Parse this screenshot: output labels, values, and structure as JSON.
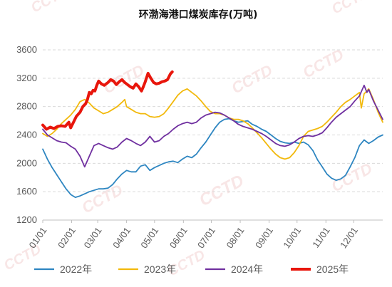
{
  "watermark": "CCTD",
  "chart_data": {
    "type": "line",
    "title": "环渤海港口煤炭库存(万吨)",
    "xlabel": "",
    "ylabel": "",
    "ylim": [
      1200,
      3600
    ],
    "yticks": [
      1200,
      1600,
      2000,
      2400,
      2800,
      3200,
      3600
    ],
    "xlim": [
      0,
      365
    ],
    "xticks": [
      {
        "label": "01/01",
        "day": 0
      },
      {
        "label": "02/01",
        "day": 31
      },
      {
        "label": "03/01",
        "day": 59
      },
      {
        "label": "04/01",
        "day": 90
      },
      {
        "label": "05/01",
        "day": 120
      },
      {
        "label": "06/01",
        "day": 151
      },
      {
        "label": "07/01",
        "day": 181
      },
      {
        "label": "08/01",
        "day": 212
      },
      {
        "label": "09/01",
        "day": 243
      },
      {
        "label": "10/01",
        "day": 273
      },
      {
        "label": "11/01",
        "day": 304
      },
      {
        "label": "12/01",
        "day": 334
      }
    ],
    "grid": true,
    "legend": "bottom",
    "series": [
      {
        "name": "2022年",
        "color": "#2e86c1",
        "width": 1.8,
        "points": [
          [
            0,
            2200
          ],
          [
            5,
            2060
          ],
          [
            10,
            1940
          ],
          [
            15,
            1840
          ],
          [
            20,
            1740
          ],
          [
            25,
            1640
          ],
          [
            30,
            1560
          ],
          [
            35,
            1520
          ],
          [
            40,
            1540
          ],
          [
            45,
            1570
          ],
          [
            50,
            1600
          ],
          [
            55,
            1620
          ],
          [
            60,
            1640
          ],
          [
            65,
            1640
          ],
          [
            70,
            1650
          ],
          [
            75,
            1700
          ],
          [
            80,
            1780
          ],
          [
            85,
            1850
          ],
          [
            90,
            1900
          ],
          [
            95,
            1880
          ],
          [
            100,
            1880
          ],
          [
            105,
            1960
          ],
          [
            110,
            1980
          ],
          [
            115,
            1900
          ],
          [
            120,
            1940
          ],
          [
            125,
            1970
          ],
          [
            130,
            2000
          ],
          [
            135,
            2020
          ],
          [
            140,
            2030
          ],
          [
            145,
            2010
          ],
          [
            150,
            2060
          ],
          [
            155,
            2100
          ],
          [
            160,
            2080
          ],
          [
            165,
            2130
          ],
          [
            170,
            2220
          ],
          [
            175,
            2300
          ],
          [
            180,
            2400
          ],
          [
            185,
            2500
          ],
          [
            190,
            2580
          ],
          [
            195,
            2620
          ],
          [
            200,
            2630
          ],
          [
            205,
            2600
          ],
          [
            210,
            2580
          ],
          [
            215,
            2590
          ],
          [
            220,
            2600
          ],
          [
            225,
            2550
          ],
          [
            230,
            2520
          ],
          [
            235,
            2480
          ],
          [
            240,
            2450
          ],
          [
            245,
            2400
          ],
          [
            250,
            2350
          ],
          [
            255,
            2310
          ],
          [
            260,
            2290
          ],
          [
            265,
            2280
          ],
          [
            270,
            2300
          ],
          [
            275,
            2280
          ],
          [
            280,
            2300
          ],
          [
            285,
            2260
          ],
          [
            290,
            2180
          ],
          [
            295,
            2050
          ],
          [
            300,
            1950
          ],
          [
            305,
            1850
          ],
          [
            310,
            1790
          ],
          [
            315,
            1760
          ],
          [
            320,
            1780
          ],
          [
            325,
            1830
          ],
          [
            330,
            1950
          ],
          [
            335,
            2080
          ],
          [
            340,
            2250
          ],
          [
            345,
            2330
          ],
          [
            350,
            2280
          ],
          [
            355,
            2320
          ],
          [
            360,
            2370
          ],
          [
            365,
            2400
          ]
        ]
      },
      {
        "name": "2023年",
        "color": "#f2b90c",
        "width": 1.8,
        "points": [
          [
            0,
            2420
          ],
          [
            5,
            2380
          ],
          [
            10,
            2420
          ],
          [
            15,
            2480
          ],
          [
            20,
            2560
          ],
          [
            25,
            2620
          ],
          [
            30,
            2680
          ],
          [
            35,
            2760
          ],
          [
            40,
            2870
          ],
          [
            45,
            2900
          ],
          [
            50,
            2850
          ],
          [
            55,
            2780
          ],
          [
            60,
            2740
          ],
          [
            65,
            2700
          ],
          [
            70,
            2720
          ],
          [
            75,
            2760
          ],
          [
            80,
            2800
          ],
          [
            85,
            2860
          ],
          [
            88,
            2900
          ],
          [
            90,
            2800
          ],
          [
            95,
            2760
          ],
          [
            100,
            2720
          ],
          [
            105,
            2700
          ],
          [
            110,
            2700
          ],
          [
            115,
            2660
          ],
          [
            120,
            2650
          ],
          [
            125,
            2660
          ],
          [
            130,
            2700
          ],
          [
            135,
            2780
          ],
          [
            140,
            2870
          ],
          [
            145,
            2960
          ],
          [
            150,
            3020
          ],
          [
            155,
            3050
          ],
          [
            160,
            3000
          ],
          [
            165,
            2950
          ],
          [
            170,
            2880
          ],
          [
            175,
            2800
          ],
          [
            180,
            2730
          ],
          [
            185,
            2700
          ],
          [
            190,
            2700
          ],
          [
            195,
            2680
          ],
          [
            200,
            2640
          ],
          [
            205,
            2620
          ],
          [
            210,
            2620
          ],
          [
            215,
            2600
          ],
          [
            220,
            2560
          ],
          [
            225,
            2500
          ],
          [
            230,
            2430
          ],
          [
            235,
            2360
          ],
          [
            240,
            2280
          ],
          [
            245,
            2200
          ],
          [
            250,
            2130
          ],
          [
            255,
            2080
          ],
          [
            260,
            2060
          ],
          [
            265,
            2080
          ],
          [
            270,
            2150
          ],
          [
            275,
            2250
          ],
          [
            280,
            2380
          ],
          [
            285,
            2450
          ],
          [
            290,
            2470
          ],
          [
            295,
            2490
          ],
          [
            300,
            2520
          ],
          [
            305,
            2580
          ],
          [
            310,
            2650
          ],
          [
            315,
            2720
          ],
          [
            320,
            2800
          ],
          [
            325,
            2860
          ],
          [
            330,
            2900
          ],
          [
            335,
            2950
          ],
          [
            340,
            3000
          ],
          [
            342,
            2780
          ],
          [
            345,
            2980
          ],
          [
            350,
            3050
          ],
          [
            355,
            2900
          ],
          [
            360,
            2720
          ],
          [
            365,
            2580
          ]
        ]
      },
      {
        "name": "2024年",
        "color": "#7030a0",
        "width": 1.8,
        "points": [
          [
            0,
            2480
          ],
          [
            5,
            2400
          ],
          [
            10,
            2360
          ],
          [
            15,
            2320
          ],
          [
            20,
            2300
          ],
          [
            25,
            2290
          ],
          [
            30,
            2240
          ],
          [
            35,
            2200
          ],
          [
            40,
            2100
          ],
          [
            45,
            1950
          ],
          [
            50,
            2100
          ],
          [
            55,
            2250
          ],
          [
            60,
            2280
          ],
          [
            65,
            2250
          ],
          [
            70,
            2220
          ],
          [
            75,
            2200
          ],
          [
            80,
            2230
          ],
          [
            85,
            2300
          ],
          [
            90,
            2350
          ],
          [
            95,
            2320
          ],
          [
            100,
            2280
          ],
          [
            105,
            2250
          ],
          [
            110,
            2300
          ],
          [
            115,
            2380
          ],
          [
            120,
            2300
          ],
          [
            125,
            2320
          ],
          [
            130,
            2380
          ],
          [
            135,
            2420
          ],
          [
            140,
            2480
          ],
          [
            145,
            2530
          ],
          [
            150,
            2560
          ],
          [
            155,
            2580
          ],
          [
            160,
            2560
          ],
          [
            165,
            2580
          ],
          [
            170,
            2640
          ],
          [
            175,
            2680
          ],
          [
            180,
            2700
          ],
          [
            185,
            2720
          ],
          [
            190,
            2710
          ],
          [
            195,
            2680
          ],
          [
            200,
            2640
          ],
          [
            205,
            2600
          ],
          [
            210,
            2550
          ],
          [
            215,
            2520
          ],
          [
            220,
            2500
          ],
          [
            225,
            2480
          ],
          [
            230,
            2450
          ],
          [
            235,
            2420
          ],
          [
            240,
            2380
          ],
          [
            245,
            2330
          ],
          [
            250,
            2280
          ],
          [
            255,
            2250
          ],
          [
            260,
            2240
          ],
          [
            265,
            2260
          ],
          [
            270,
            2300
          ],
          [
            275,
            2350
          ],
          [
            280,
            2380
          ],
          [
            285,
            2390
          ],
          [
            290,
            2380
          ],
          [
            295,
            2400
          ],
          [
            300,
            2430
          ],
          [
            305,
            2500
          ],
          [
            310,
            2580
          ],
          [
            315,
            2650
          ],
          [
            320,
            2700
          ],
          [
            325,
            2750
          ],
          [
            330,
            2800
          ],
          [
            335,
            2880
          ],
          [
            340,
            2950
          ],
          [
            345,
            3100
          ],
          [
            348,
            3000
          ],
          [
            350,
            3040
          ],
          [
            355,
            2880
          ],
          [
            360,
            2750
          ],
          [
            365,
            2620
          ]
        ]
      },
      {
        "name": "2025年",
        "color": "#e8160c",
        "width": 4,
        "points": [
          [
            0,
            2540
          ],
          [
            4,
            2480
          ],
          [
            8,
            2510
          ],
          [
            12,
            2490
          ],
          [
            16,
            2520
          ],
          [
            20,
            2530
          ],
          [
            24,
            2520
          ],
          [
            28,
            2580
          ],
          [
            30,
            2500
          ],
          [
            33,
            2580
          ],
          [
            36,
            2660
          ],
          [
            40,
            2720
          ],
          [
            43,
            2800
          ],
          [
            46,
            2840
          ],
          [
            48,
            2900
          ],
          [
            50,
            3000
          ],
          [
            52,
            2980
          ],
          [
            54,
            3030
          ],
          [
            56,
            3020
          ],
          [
            58,
            3100
          ],
          [
            60,
            3160
          ],
          [
            63,
            3120
          ],
          [
            66,
            3100
          ],
          [
            70,
            3140
          ],
          [
            73,
            3180
          ],
          [
            76,
            3160
          ],
          [
            79,
            3110
          ],
          [
            82,
            3150
          ],
          [
            85,
            3180
          ],
          [
            88,
            3140
          ],
          [
            91,
            3110
          ],
          [
            94,
            3080
          ],
          [
            97,
            3060
          ],
          [
            100,
            3120
          ],
          [
            103,
            3080
          ],
          [
            106,
            3020
          ],
          [
            108,
            3080
          ],
          [
            110,
            3150
          ],
          [
            113,
            3270
          ],
          [
            116,
            3200
          ],
          [
            119,
            3140
          ],
          [
            122,
            3120
          ],
          [
            125,
            3130
          ],
          [
            128,
            3150
          ],
          [
            131,
            3160
          ],
          [
            134,
            3180
          ],
          [
            137,
            3260
          ],
          [
            139,
            3290
          ]
        ]
      }
    ]
  }
}
